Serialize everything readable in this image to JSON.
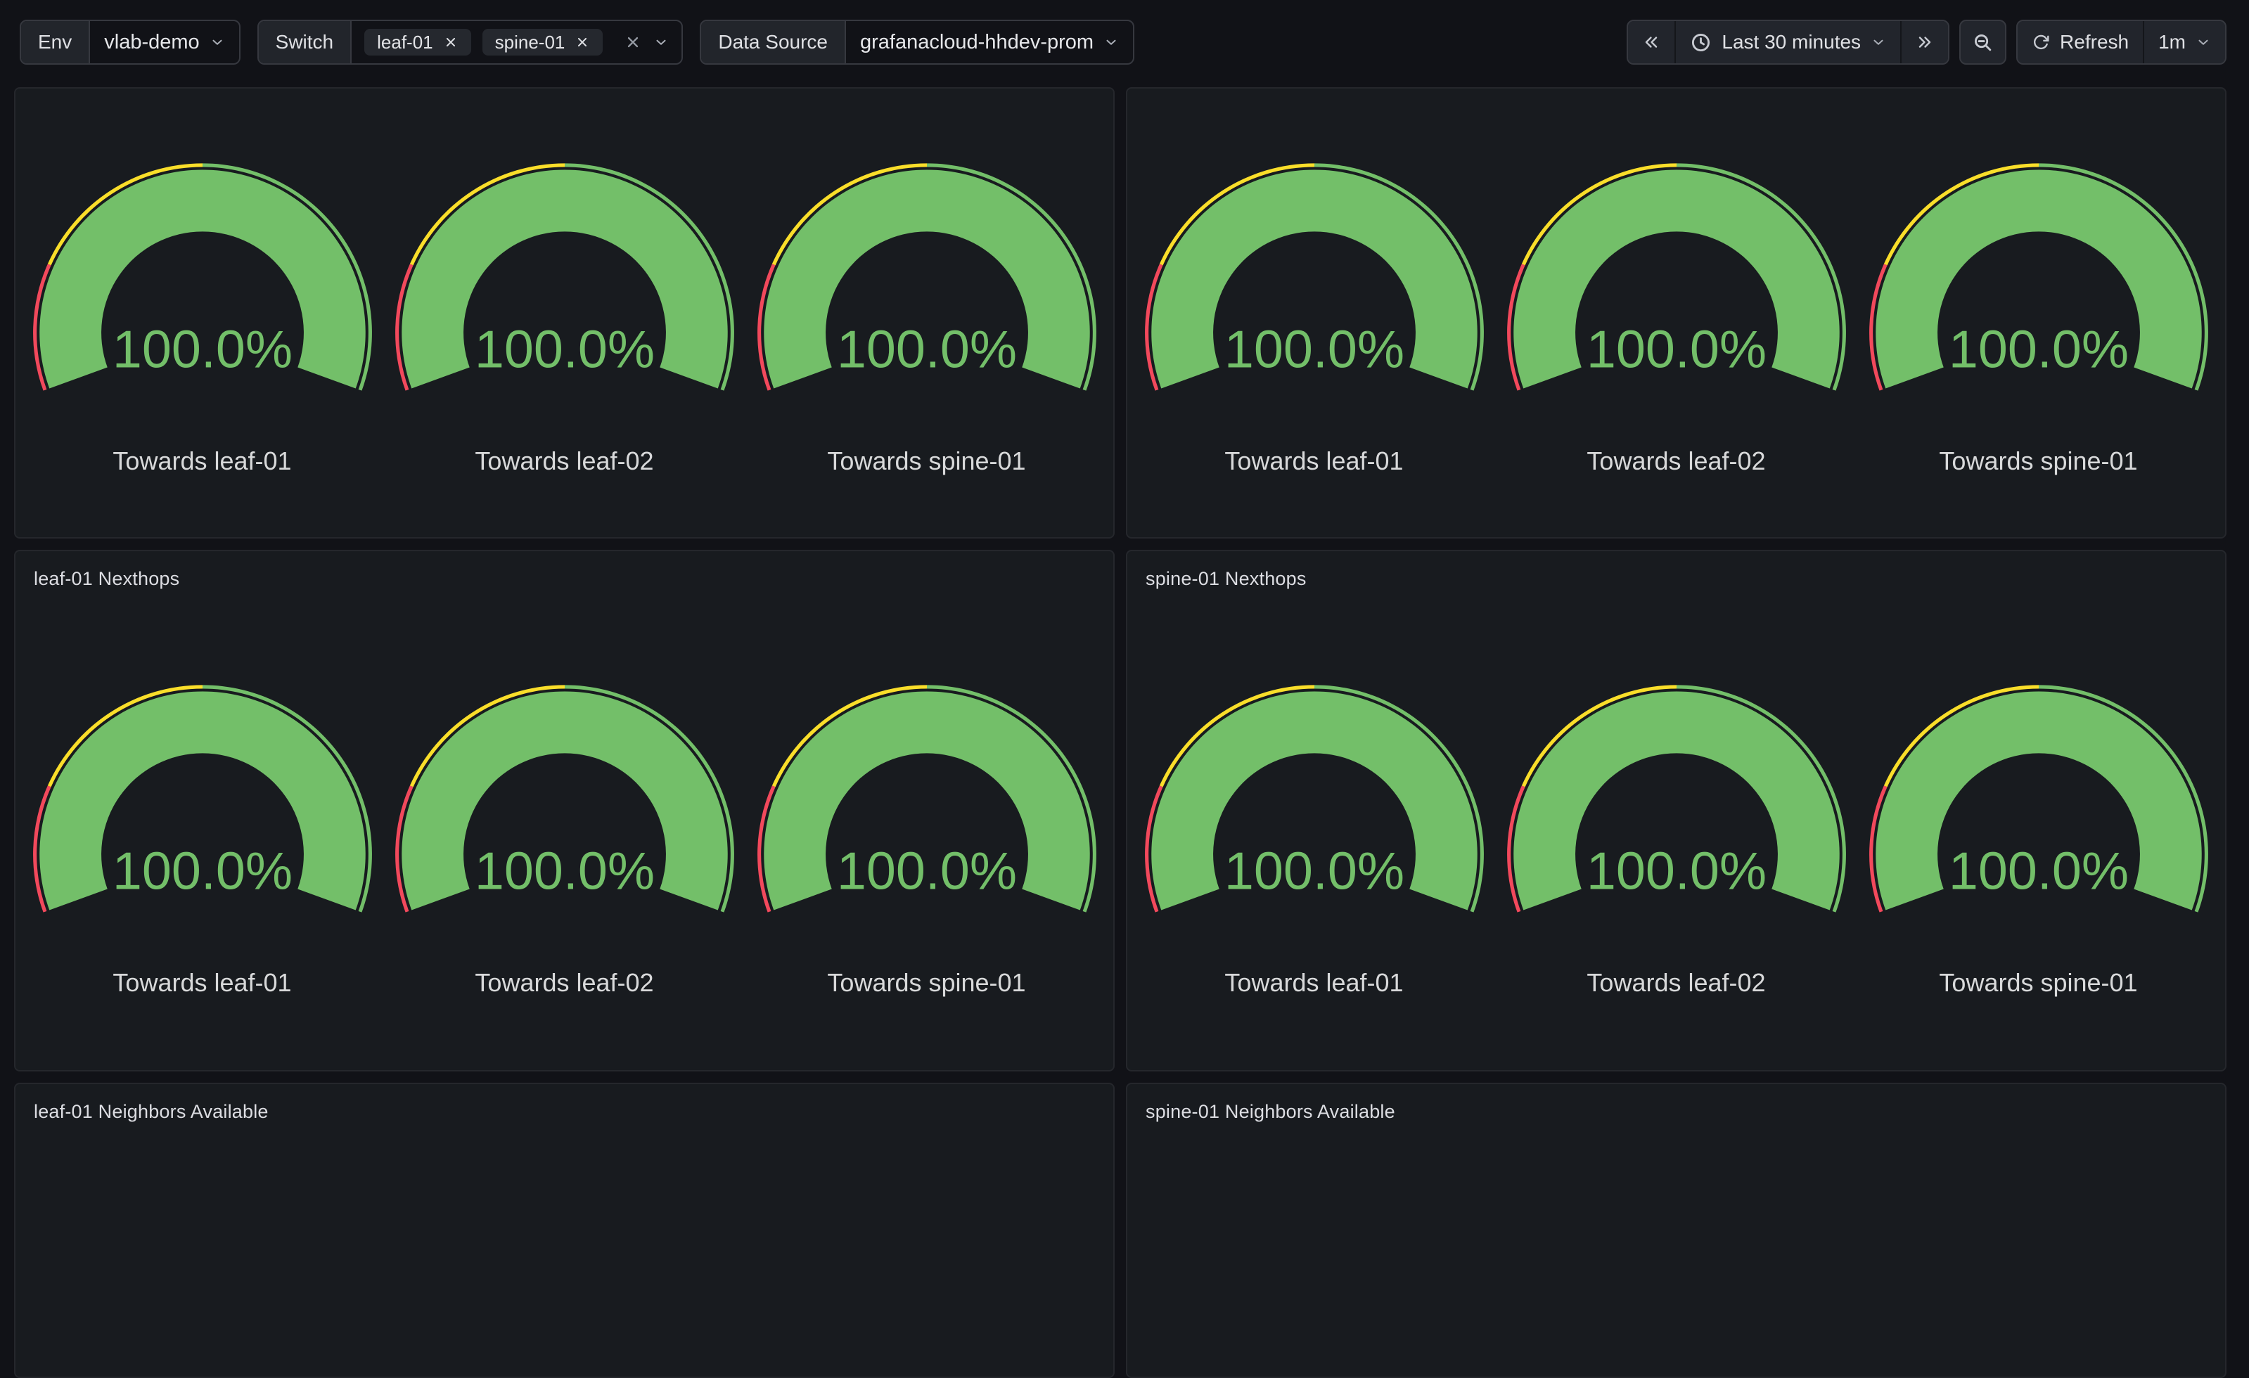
{
  "colors": {
    "green": "#73BF69",
    "yellow": "#FADE2A",
    "red": "#F2495C",
    "value_text": "#73BF69",
    "gauge_label_text": "#D8D9DA",
    "panel_background": "#181B1F",
    "page_background": "#111217"
  },
  "toolbar": {
    "env": {
      "label": "Env",
      "value": "vlab-demo"
    },
    "switch": {
      "label": "Switch",
      "tags": [
        "leaf-01",
        "spine-01"
      ]
    },
    "datasource": {
      "label": "Data Source",
      "value": "grafanacloud-hhdev-prom"
    },
    "time_range": {
      "label": "Last 30 minutes"
    },
    "refresh": {
      "label": "Refresh",
      "interval": "1m"
    }
  },
  "gauge_config": {
    "min": 0,
    "max": 100,
    "unit": "%",
    "start_angle": 200,
    "end_angle": -20,
    "thresholds": [
      {
        "from": 0,
        "color": "#F2495C",
        "name": "red"
      },
      {
        "from": 20,
        "color": "#FADE2A",
        "name": "yellow"
      },
      {
        "from": 50,
        "color": "#73BF69",
        "name": "green"
      }
    ]
  },
  "panels": [
    {
      "title": "",
      "row": 1,
      "gauges": [
        {
          "label": "Towards leaf-01",
          "value": 100,
          "display": "100.0%"
        },
        {
          "label": "Towards leaf-02",
          "value": 100,
          "display": "100.0%"
        },
        {
          "label": "Towards spine-01",
          "value": 100,
          "display": "100.0%"
        }
      ]
    },
    {
      "title": "",
      "row": 1,
      "gauges": [
        {
          "label": "Towards leaf-01",
          "value": 100,
          "display": "100.0%"
        },
        {
          "label": "Towards leaf-02",
          "value": 100,
          "display": "100.0%"
        },
        {
          "label": "Towards spine-01",
          "value": 100,
          "display": "100.0%"
        }
      ]
    },
    {
      "title": "leaf-01 Nexthops",
      "row": 2,
      "gauges": [
        {
          "label": "Towards leaf-01",
          "value": 100,
          "display": "100.0%"
        },
        {
          "label": "Towards leaf-02",
          "value": 100,
          "display": "100.0%"
        },
        {
          "label": "Towards spine-01",
          "value": 100,
          "display": "100.0%"
        }
      ]
    },
    {
      "title": "spine-01 Nexthops",
      "row": 2,
      "gauges": [
        {
          "label": "Towards leaf-01",
          "value": 100,
          "display": "100.0%"
        },
        {
          "label": "Towards leaf-02",
          "value": 100,
          "display": "100.0%"
        },
        {
          "label": "Towards spine-01",
          "value": 100,
          "display": "100.0%"
        }
      ]
    },
    {
      "title": "leaf-01 Neighbors Available",
      "row": 3,
      "gauges": []
    },
    {
      "title": "spine-01 Neighbors Available",
      "row": 3,
      "gauges": []
    }
  ]
}
